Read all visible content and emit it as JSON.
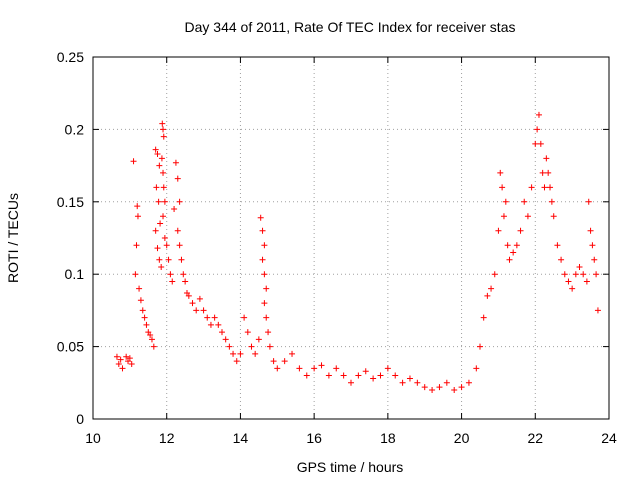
{
  "chart_data": {
    "type": "scatter",
    "title": "Day 344 of 2011, Rate Of TEC Index for receiver stas",
    "xlabel": "GPS time / hours",
    "ylabel": "ROTI / TECUs",
    "xlim": [
      10,
      24
    ],
    "ylim": [
      0,
      0.25
    ],
    "xticks": [
      10,
      12,
      14,
      16,
      18,
      20,
      22,
      24
    ],
    "xtick_labels": [
      "10",
      "12",
      "14",
      "16",
      "18",
      "20",
      "22",
      "24"
    ],
    "yticks": [
      0,
      0.05,
      0.1,
      0.15,
      0.2,
      0.25
    ],
    "ytick_labels": [
      "0",
      "0.05",
      "0.1",
      "0.15",
      "0.2",
      "0.25"
    ],
    "grid": true,
    "marker": "+",
    "color": "#ff0000",
    "series": [
      {
        "points": [
          [
            10.65,
            0.043
          ],
          [
            10.7,
            0.038
          ],
          [
            10.75,
            0.041
          ],
          [
            10.8,
            0.035
          ],
          [
            10.9,
            0.043
          ],
          [
            10.95,
            0.04
          ],
          [
            11.0,
            0.042
          ],
          [
            11.05,
            0.038
          ],
          [
            11.1,
            0.178
          ],
          [
            11.2,
            0.147
          ],
          [
            11.22,
            0.14
          ],
          [
            11.18,
            0.12
          ],
          [
            11.15,
            0.1
          ],
          [
            11.25,
            0.09
          ],
          [
            11.3,
            0.082
          ],
          [
            11.35,
            0.075
          ],
          [
            11.4,
            0.07
          ],
          [
            11.45,
            0.065
          ],
          [
            11.5,
            0.06
          ],
          [
            11.55,
            0.058
          ],
          [
            11.6,
            0.055
          ],
          [
            11.65,
            0.05
          ],
          [
            11.7,
            0.186
          ],
          [
            11.75,
            0.183
          ],
          [
            11.8,
            0.175
          ],
          [
            11.72,
            0.16
          ],
          [
            11.78,
            0.15
          ],
          [
            11.82,
            0.135
          ],
          [
            11.7,
            0.13
          ],
          [
            11.75,
            0.118
          ],
          [
            11.8,
            0.11
          ],
          [
            11.85,
            0.105
          ],
          [
            11.88,
            0.204
          ],
          [
            11.9,
            0.2
          ],
          [
            11.92,
            0.195
          ],
          [
            11.87,
            0.18
          ],
          [
            11.9,
            0.17
          ],
          [
            11.92,
            0.16
          ],
          [
            11.95,
            0.15
          ],
          [
            11.9,
            0.14
          ],
          [
            11.95,
            0.125
          ],
          [
            12.0,
            0.12
          ],
          [
            12.05,
            0.11
          ],
          [
            12.1,
            0.1
          ],
          [
            12.15,
            0.095
          ],
          [
            12.2,
            0.145
          ],
          [
            12.25,
            0.177
          ],
          [
            12.3,
            0.166
          ],
          [
            12.35,
            0.15
          ],
          [
            12.3,
            0.13
          ],
          [
            12.35,
            0.12
          ],
          [
            12.4,
            0.11
          ],
          [
            12.45,
            0.1
          ],
          [
            12.5,
            0.095
          ],
          [
            12.55,
            0.087
          ],
          [
            12.6,
            0.085
          ],
          [
            12.7,
            0.08
          ],
          [
            12.8,
            0.075
          ],
          [
            12.9,
            0.083
          ],
          [
            13.0,
            0.075
          ],
          [
            13.1,
            0.07
          ],
          [
            13.2,
            0.065
          ],
          [
            13.3,
            0.07
          ],
          [
            13.4,
            0.065
          ],
          [
            13.5,
            0.06
          ],
          [
            13.6,
            0.055
          ],
          [
            13.7,
            0.05
          ],
          [
            13.8,
            0.045
          ],
          [
            13.9,
            0.04
          ],
          [
            14.0,
            0.045
          ],
          [
            14.1,
            0.07
          ],
          [
            14.2,
            0.06
          ],
          [
            14.3,
            0.05
          ],
          [
            14.4,
            0.045
          ],
          [
            14.5,
            0.055
          ],
          [
            14.55,
            0.139
          ],
          [
            14.6,
            0.13
          ],
          [
            14.65,
            0.12
          ],
          [
            14.6,
            0.11
          ],
          [
            14.65,
            0.1
          ],
          [
            14.7,
            0.09
          ],
          [
            14.65,
            0.08
          ],
          [
            14.7,
            0.07
          ],
          [
            14.75,
            0.06
          ],
          [
            14.8,
            0.05
          ],
          [
            14.9,
            0.04
          ],
          [
            15.0,
            0.035
          ],
          [
            15.2,
            0.04
          ],
          [
            15.4,
            0.045
          ],
          [
            15.6,
            0.035
          ],
          [
            15.8,
            0.03
          ],
          [
            16.0,
            0.035
          ],
          [
            16.2,
            0.037
          ],
          [
            16.4,
            0.03
          ],
          [
            16.6,
            0.035
          ],
          [
            16.8,
            0.03
          ],
          [
            17.0,
            0.025
          ],
          [
            17.2,
            0.03
          ],
          [
            17.4,
            0.033
          ],
          [
            17.6,
            0.028
          ],
          [
            17.8,
            0.03
          ],
          [
            18.0,
            0.035
          ],
          [
            18.2,
            0.03
          ],
          [
            18.4,
            0.025
          ],
          [
            18.6,
            0.028
          ],
          [
            18.8,
            0.025
          ],
          [
            19.0,
            0.022
          ],
          [
            19.2,
            0.02
          ],
          [
            19.4,
            0.022
          ],
          [
            19.6,
            0.025
          ],
          [
            19.8,
            0.02
          ],
          [
            20.0,
            0.022
          ],
          [
            20.2,
            0.025
          ],
          [
            20.4,
            0.035
          ],
          [
            20.5,
            0.05
          ],
          [
            20.6,
            0.07
          ],
          [
            20.7,
            0.085
          ],
          [
            20.8,
            0.09
          ],
          [
            20.9,
            0.1
          ],
          [
            21.0,
            0.13
          ],
          [
            21.05,
            0.17
          ],
          [
            21.1,
            0.16
          ],
          [
            21.15,
            0.14
          ],
          [
            21.2,
            0.15
          ],
          [
            21.25,
            0.12
          ],
          [
            21.3,
            0.11
          ],
          [
            21.4,
            0.115
          ],
          [
            21.5,
            0.12
          ],
          [
            21.6,
            0.13
          ],
          [
            21.7,
            0.15
          ],
          [
            21.8,
            0.14
          ],
          [
            21.9,
            0.16
          ],
          [
            22.0,
            0.19
          ],
          [
            22.05,
            0.2
          ],
          [
            22.1,
            0.21
          ],
          [
            22.15,
            0.19
          ],
          [
            22.2,
            0.17
          ],
          [
            22.25,
            0.16
          ],
          [
            22.3,
            0.18
          ],
          [
            22.35,
            0.17
          ],
          [
            22.4,
            0.16
          ],
          [
            22.45,
            0.15
          ],
          [
            22.5,
            0.14
          ],
          [
            22.6,
            0.12
          ],
          [
            22.7,
            0.11
          ],
          [
            22.8,
            0.1
          ],
          [
            22.9,
            0.095
          ],
          [
            23.0,
            0.09
          ],
          [
            23.1,
            0.1
          ],
          [
            23.2,
            0.105
          ],
          [
            23.3,
            0.1
          ],
          [
            23.4,
            0.095
          ],
          [
            23.45,
            0.15
          ],
          [
            23.5,
            0.13
          ],
          [
            23.55,
            0.12
          ],
          [
            23.6,
            0.11
          ],
          [
            23.65,
            0.1
          ],
          [
            23.7,
            0.075
          ]
        ]
      }
    ]
  }
}
